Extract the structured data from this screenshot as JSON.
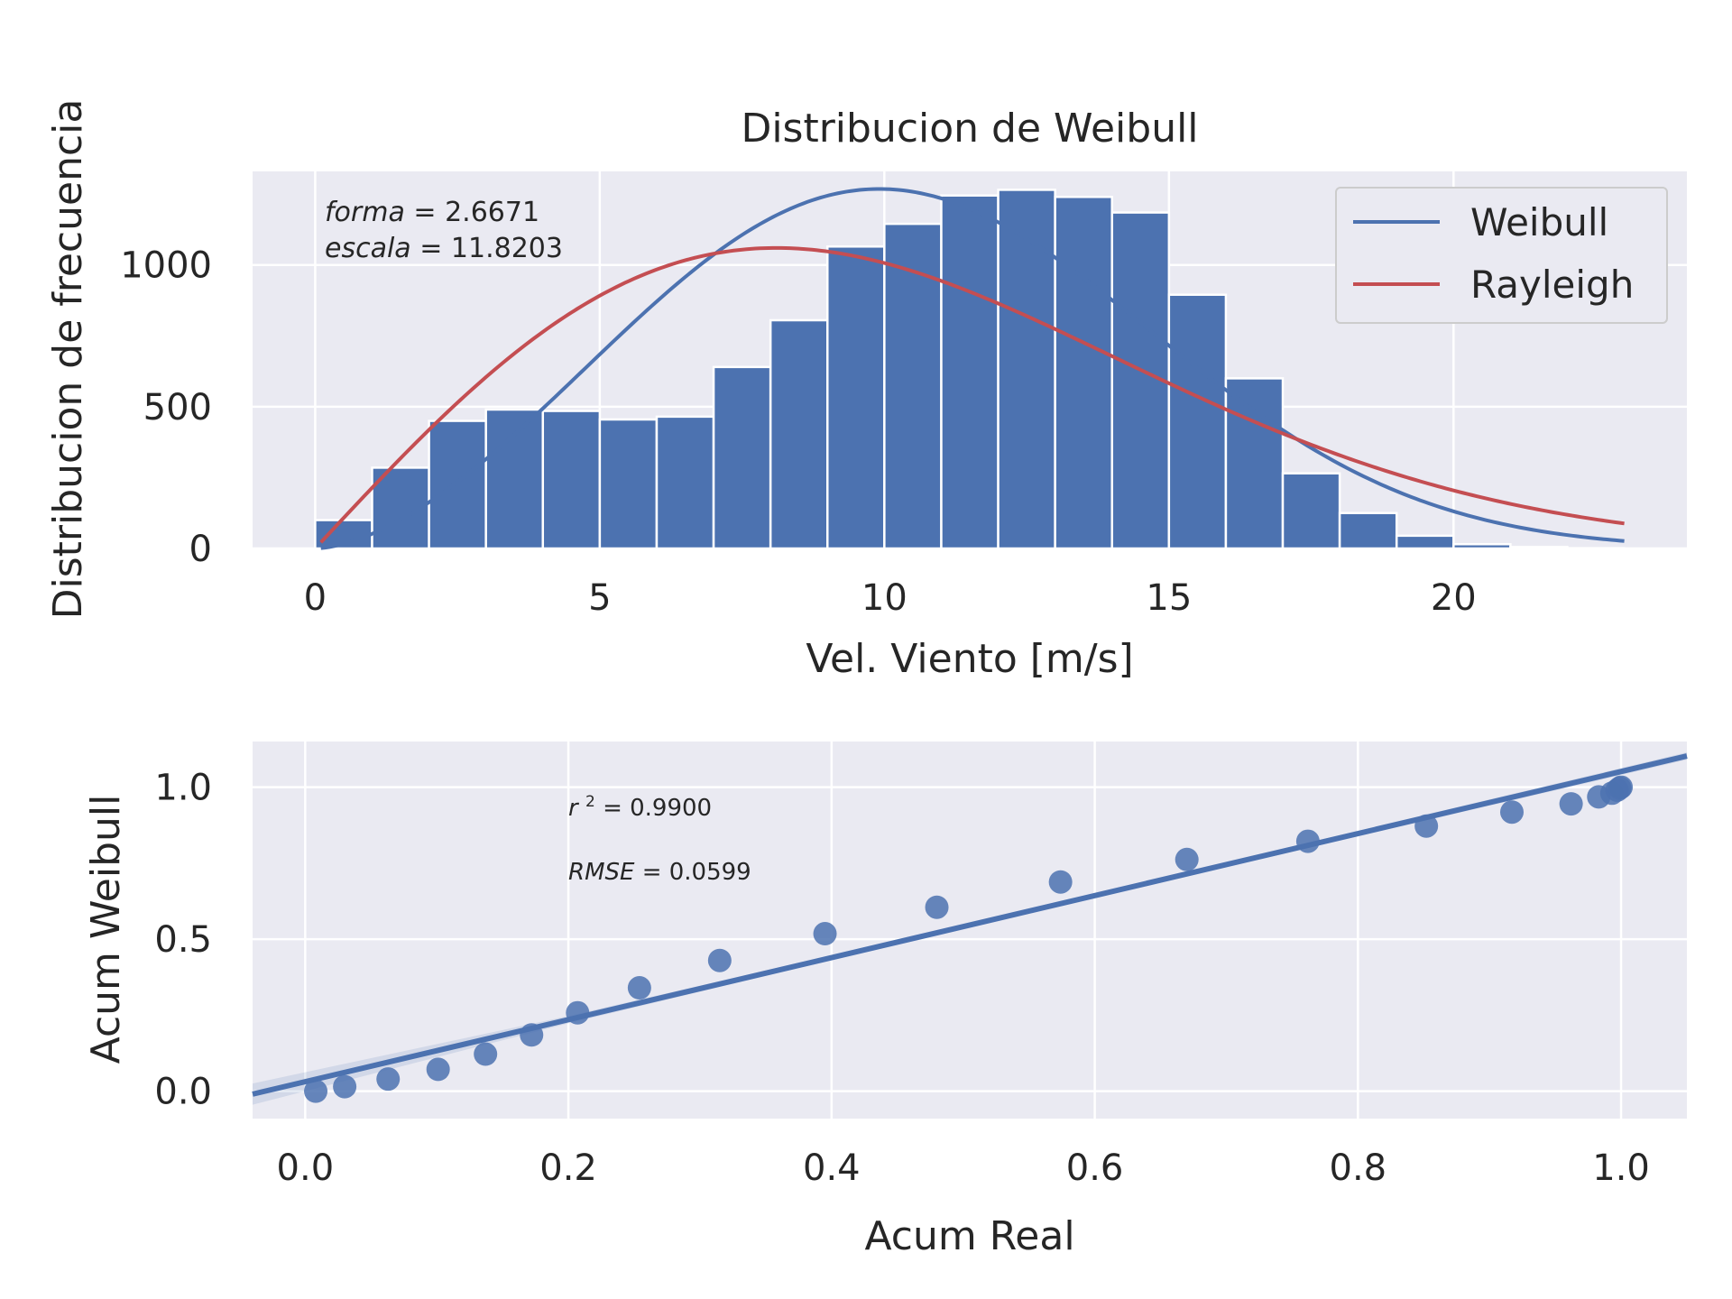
{
  "colors": {
    "background": "#ffffff",
    "plot_bg": "#eaeaf2",
    "grid": "#ffffff",
    "bar": "#4c72b0",
    "weibull": "#4c72b0",
    "rayleigh": "#c44e52",
    "text": "#262626",
    "scatter": "#4c72b0"
  },
  "chart_data": [
    {
      "type": "bar",
      "title": "Distribucion de Weibull",
      "xlabel": "Vel. Viento [m/s]",
      "ylabel": "Distribucion de frecuencia",
      "xlim": [
        -1.1,
        24.1
      ],
      "ylim": [
        0,
        1330
      ],
      "xticks": [
        0,
        5,
        10,
        15,
        20
      ],
      "yticks": [
        0,
        500,
        1000
      ],
      "grid": true,
      "legend_position": "top-right",
      "bin_width": 1,
      "bins": [
        {
          "x0": 0,
          "value": 100
        },
        {
          "x0": 1,
          "value": 285
        },
        {
          "x0": 2,
          "value": 450
        },
        {
          "x0": 3,
          "value": 490
        },
        {
          "x0": 4,
          "value": 485
        },
        {
          "x0": 5,
          "value": 455
        },
        {
          "x0": 6,
          "value": 465
        },
        {
          "x0": 7,
          "value": 640
        },
        {
          "x0": 8,
          "value": 805
        },
        {
          "x0": 9,
          "value": 1065
        },
        {
          "x0": 10,
          "value": 1145
        },
        {
          "x0": 11,
          "value": 1245
        },
        {
          "x0": 12,
          "value": 1265
        },
        {
          "x0": 13,
          "value": 1240
        },
        {
          "x0": 14,
          "value": 1185
        },
        {
          "x0": 15,
          "value": 895
        },
        {
          "x0": 16,
          "value": 600
        },
        {
          "x0": 17,
          "value": 265
        },
        {
          "x0": 18,
          "value": 125
        },
        {
          "x0": 19,
          "value": 45
        },
        {
          "x0": 20,
          "value": 15
        },
        {
          "x0": 21,
          "value": 5
        },
        {
          "x0": 22,
          "value": 1
        }
      ],
      "series": [
        {
          "name": "Weibull",
          "kind": "line",
          "shape": 2.6671,
          "scale": 11.8203,
          "x_range": [
            0.1,
            23
          ],
          "peak": 1268
        },
        {
          "name": "Rayleigh",
          "kind": "line",
          "sigma": 8.1,
          "x_range": [
            0.1,
            23
          ],
          "peak": 1060
        }
      ],
      "legend": [
        "Weibull",
        "Rayleigh"
      ],
      "annotation": {
        "line1_var": "forma",
        "line1_val": "= 2.6671",
        "line2_var": "escala",
        "line2_val": "= 11.8203"
      }
    },
    {
      "type": "scatter",
      "xlabel": "Acum Real",
      "ylabel": "Acum Weibull",
      "xlim": [
        -0.04,
        1.05
      ],
      "ylim": [
        -0.09,
        1.15
      ],
      "xticks": [
        "0.0",
        "0.2",
        "0.4",
        "0.6",
        "0.8",
        "1.0"
      ],
      "yticks": [
        "0.0",
        "0.5",
        "1.0"
      ],
      "grid": true,
      "points": [
        {
          "x": 0.008,
          "y": 0.0
        },
        {
          "x": 0.03,
          "y": 0.015
        },
        {
          "x": 0.063,
          "y": 0.04
        },
        {
          "x": 0.101,
          "y": 0.072
        },
        {
          "x": 0.137,
          "y": 0.122
        },
        {
          "x": 0.172,
          "y": 0.185
        },
        {
          "x": 0.207,
          "y": 0.258
        },
        {
          "x": 0.254,
          "y": 0.34
        },
        {
          "x": 0.315,
          "y": 0.43
        },
        {
          "x": 0.395,
          "y": 0.518
        },
        {
          "x": 0.48,
          "y": 0.605
        },
        {
          "x": 0.574,
          "y": 0.688
        },
        {
          "x": 0.67,
          "y": 0.762
        },
        {
          "x": 0.762,
          "y": 0.822
        },
        {
          "x": 0.852,
          "y": 0.872
        },
        {
          "x": 0.917,
          "y": 0.918
        },
        {
          "x": 0.962,
          "y": 0.945
        },
        {
          "x": 0.983,
          "y": 0.968
        },
        {
          "x": 0.993,
          "y": 0.98
        },
        {
          "x": 0.997,
          "y": 0.99
        },
        {
          "x": 0.999,
          "y": 0.997
        },
        {
          "x": 1.0,
          "y": 1.0
        }
      ],
      "fit_line": {
        "slope": 1.02,
        "intercept": 0.0313
      },
      "annotation": {
        "r2_var": "r",
        "r2_sup": "2",
        "r2_val": "= 0.9900",
        "rmse_var": "RMSE",
        "rmse_val": "= 0.0599"
      }
    }
  ]
}
